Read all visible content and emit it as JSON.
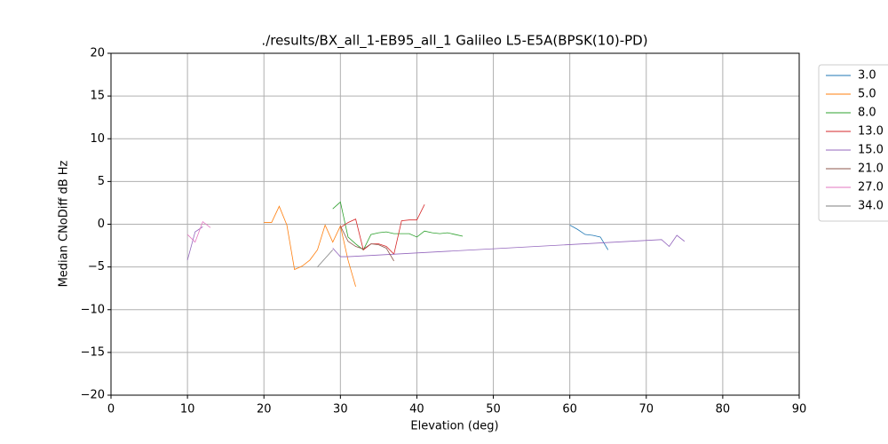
{
  "chart_data": {
    "type": "line",
    "title": "./results/BX_all_1-EB95_all_1 Galileo L5-E5A(BPSK(10)-PD)",
    "xlabel": "Elevation (deg)",
    "ylabel": "Median CNoDiff dB Hz",
    "xlim": [
      0,
      90
    ],
    "ylim": [
      -20,
      20
    ],
    "xticks": [
      0,
      10,
      20,
      30,
      40,
      50,
      60,
      70,
      80,
      90
    ],
    "yticks": [
      {
        "value": -20,
        "label": "−20"
      },
      {
        "value": -15,
        "label": "−15"
      },
      {
        "value": -10,
        "label": "−10"
      },
      {
        "value": -5,
        "label": "−5"
      },
      0,
      5,
      10,
      15,
      20
    ],
    "grid": true,
    "legend": "outside right",
    "series": [
      {
        "name": "3.0",
        "color": "#1f77b4",
        "x": [
          60,
          61,
          62,
          63,
          64,
          65
        ],
        "values": [
          -0.1,
          -0.6,
          -1.2,
          -1.3,
          -1.5,
          -3.0
        ]
      },
      {
        "name": "5.0",
        "color": "#ff7f0e",
        "x": [
          20,
          21,
          22,
          23,
          24,
          25,
          26,
          27,
          28,
          29,
          30,
          31,
          32
        ],
        "values": [
          0.2,
          0.2,
          2.1,
          -0.1,
          -5.3,
          -4.9,
          -4.2,
          -3.0,
          -0.1,
          -2.1,
          -0.2,
          -4.2,
          -7.3
        ]
      },
      {
        "name": "8.0",
        "color": "#2ca02c",
        "x": [
          29,
          30,
          31,
          32,
          33,
          34,
          35,
          36,
          37,
          38,
          39,
          40,
          41,
          42,
          43,
          44,
          45,
          46
        ],
        "values": [
          1.8,
          2.6,
          -1.5,
          -2.3,
          -3.0,
          -1.2,
          -1.0,
          -0.9,
          -1.1,
          -1.1,
          -1.1,
          -1.5,
          -0.8,
          -1.0,
          -1.1,
          -1.0,
          -1.2,
          -1.4
        ]
      },
      {
        "name": "13.0",
        "color": "#d62728",
        "x": [
          30,
          31,
          32,
          33,
          34,
          35,
          36,
          37,
          38,
          39,
          40,
          41
        ],
        "values": [
          -0.4,
          0.2,
          0.6,
          -3.0,
          -2.3,
          -2.3,
          -2.6,
          -3.5,
          0.4,
          0.5,
          0.5,
          2.3
        ]
      },
      {
        "name": "15.0",
        "color": "#9467bd",
        "x": [
          10,
          11,
          12,
          28,
          29,
          30,
          31,
          72,
          73,
          74,
          75
        ],
        "values": [
          -4.2,
          -0.9,
          -0.3,
          null,
          -2.8,
          -3.8,
          -3.8,
          -1.8,
          -2.6,
          -1.3,
          -2.0
        ]
      },
      {
        "name": "21.0",
        "color": "#8c564b",
        "x": [
          30,
          31,
          32,
          33,
          34,
          35,
          36,
          37
        ],
        "values": [
          -0.2,
          -2.0,
          -2.6,
          -2.9,
          -2.3,
          -2.4,
          -2.8,
          -4.3
        ]
      },
      {
        "name": "27.0",
        "color": "#e377c2",
        "x": [
          10,
          11,
          12,
          13
        ],
        "values": [
          -1.2,
          -2.1,
          0.3,
          -0.4
        ]
      },
      {
        "name": "34.0",
        "color": "#7f7f7f",
        "x": [
          27,
          28,
          29
        ],
        "values": [
          -5.0,
          -4.0,
          -3.0
        ]
      }
    ]
  }
}
